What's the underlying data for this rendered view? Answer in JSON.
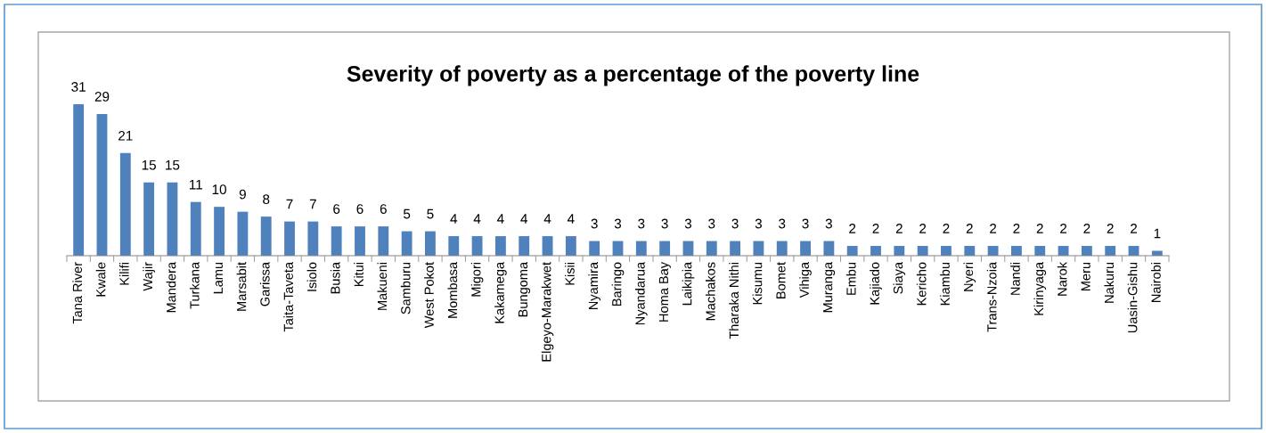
{
  "chart_data": {
    "type": "bar",
    "title": "Severity of poverty as a percentage of the poverty line",
    "categories": [
      "Tana River",
      "Kwale",
      "Kilifi",
      "Wajir",
      "Mandera",
      "Turkana",
      "Lamu",
      "Marsabit",
      "Garissa",
      "Taita-Taveta",
      "Isiolo",
      "Busia",
      "Kitui",
      "Makueni",
      "Samburu",
      "West Pokot",
      "Mombasa",
      "Migori",
      "Kakamega",
      "Bungoma",
      "Elgeyo-Marakwet",
      "Kisii",
      "Nyamira",
      "Baringo",
      "Nyandarua",
      "Homa Bay",
      "Laikipia",
      "Machakos",
      "Tharaka Nithi",
      "Kisumu",
      "Bomet",
      "Vihiga",
      "Muranga",
      "Embu",
      "Kajiado",
      "Siaya",
      "Kericho",
      "Kiambu",
      "Nyeri",
      "Trans-Nzoia",
      "Nandi",
      "Kirinyaga",
      "Narok",
      "Meru",
      "Nakuru",
      "Uasin-Gishu",
      "Nairobi"
    ],
    "values": [
      31,
      29,
      21,
      15,
      15,
      11,
      10,
      9,
      8,
      7,
      7,
      6,
      6,
      6,
      5,
      5,
      4,
      4,
      4,
      4,
      4,
      4,
      3,
      3,
      3,
      3,
      3,
      3,
      3,
      3,
      3,
      3,
      3,
      2,
      2,
      2,
      2,
      2,
      2,
      2,
      2,
      2,
      2,
      2,
      2,
      2,
      1
    ],
    "color": "#4f81bd",
    "data_labels": true,
    "grid": false,
    "legend": false
  }
}
